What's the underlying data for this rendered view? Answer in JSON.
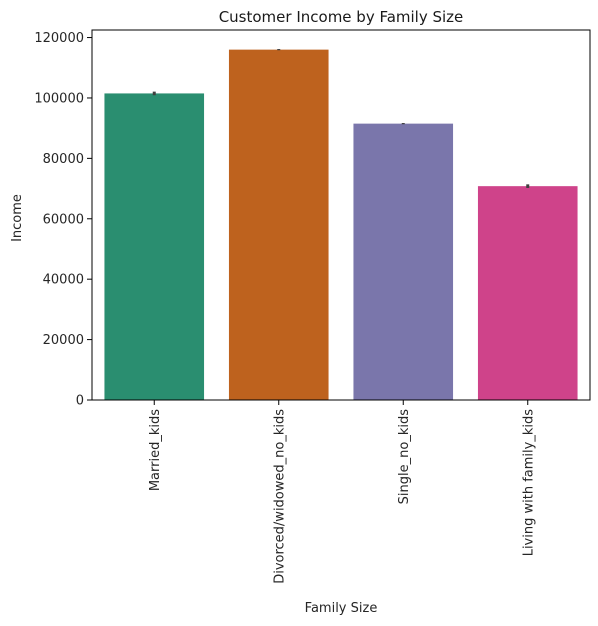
{
  "chart_data": {
    "type": "bar",
    "title": "Customer Income by Family Size",
    "xlabel": "Family Size",
    "ylabel": "Income",
    "categories": [
      "Married_kids",
      "Divorced/widowed_no_kids",
      "Single_no_kids",
      "Living with family_kids"
    ],
    "values": [
      101500,
      116000,
      91500,
      70800
    ],
    "error_bars": [
      [
        100900,
        102100
      ],
      [
        115800,
        116200
      ],
      [
        91300,
        91700
      ],
      [
        70200,
        71400
      ]
    ],
    "colors": [
      "#2a8e70",
      "#be621e",
      "#7a76ab",
      "#cf438a"
    ],
    "ylim": [
      0,
      122500
    ],
    "yticks": [
      0,
      20000,
      40000,
      60000,
      80000,
      100000,
      120000
    ],
    "ytick_labels": [
      "0",
      "20000",
      "40000",
      "60000",
      "80000",
      "100000",
      "120000"
    ],
    "grid": false,
    "legend": "none"
  }
}
